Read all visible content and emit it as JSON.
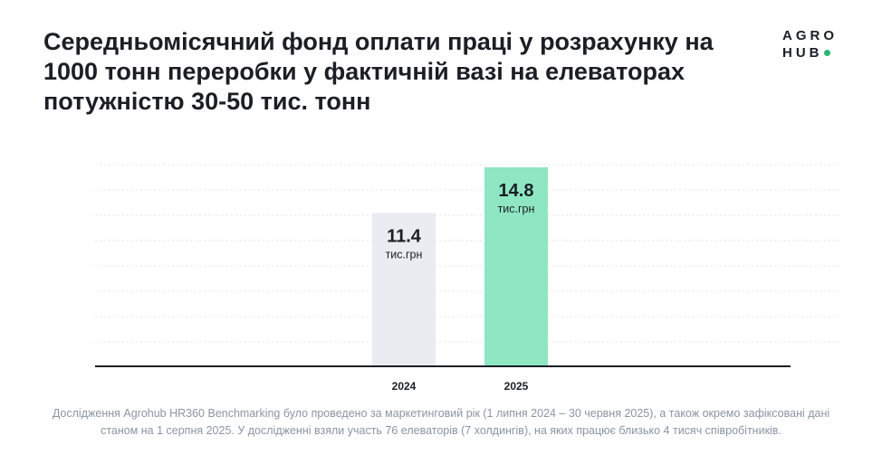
{
  "header": {
    "title": "Середньомісячний фонд оплати праці у розрахунку на 1000 тонн переробки у фактичній вазі на елеваторах потужністю 30-50 тис. тонн",
    "logo_line1": "AGRO",
    "logo_line2": "HUB"
  },
  "chart_data": {
    "type": "bar",
    "categories": [
      "2024",
      "2025"
    ],
    "values": [
      11.4,
      14.8
    ],
    "value_unit_label": "тис.грн",
    "bar_colors": [
      "#e9edf1",
      "#8ee6c3"
    ],
    "ylim": [
      0,
      15
    ],
    "grid": true,
    "title": "",
    "xlabel": "",
    "ylabel": ""
  },
  "footer": {
    "note": "Дослідження Agrohub HR360 Benchmarking було проведено за маркетинговий рік (1 липня 2024 – 30 червня 2025), а також окремо зафіксовані дані станом на 1 серпня 2025. У дослідженні взяли участь 76 елеваторів (7 холдингів), на яких працює близько 4 тисяч співробітників."
  },
  "colors": {
    "accent": "#2bb673",
    "text": "#1b1f24",
    "footer_text": "#8a95a3",
    "grid": "#e3e6ea",
    "axis": "#1b1f24"
  }
}
